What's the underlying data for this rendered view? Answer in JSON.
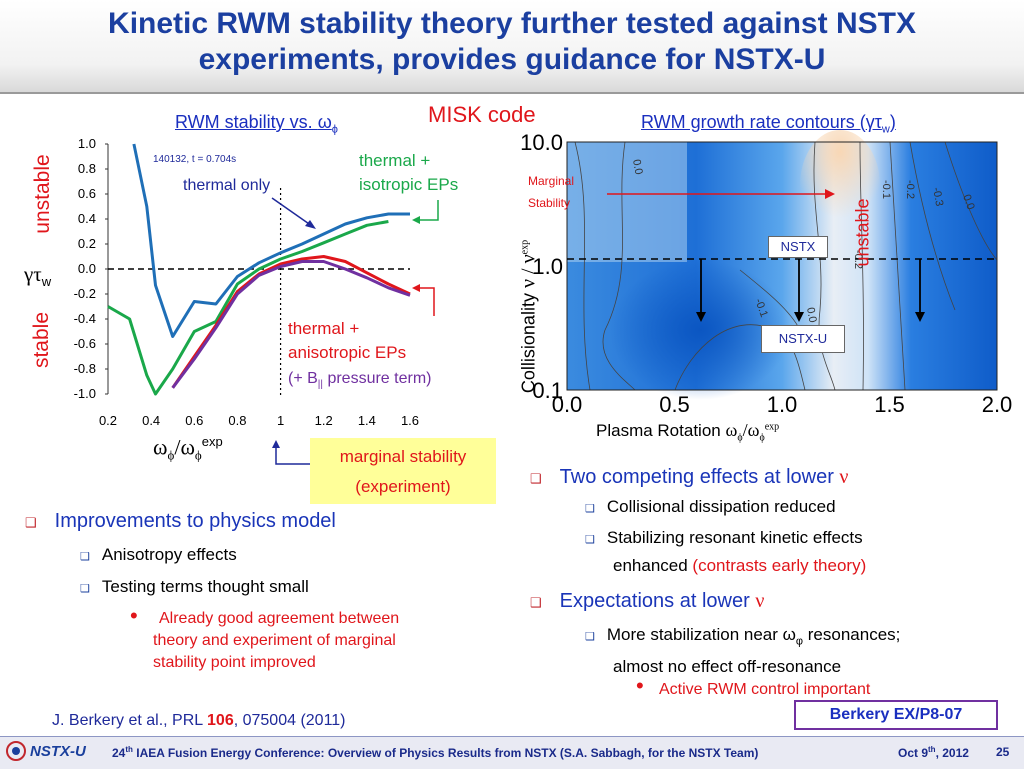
{
  "title": {
    "line1": "Kinetic RWM stability theory further tested against NSTX",
    "line2": "experiments, provides guidance for NSTX-U"
  },
  "misk_label": "MISK code",
  "left_plot": {
    "header_prefix": "RWM stability vs. ",
    "header_symbol": "ω",
    "header_sub": "ϕ",
    "shot_label": "140132, t = 0.704s",
    "ylabel_unstable": "unstable",
    "ylabel_stable": "stable",
    "ylabel_symbol": "γτ",
    "ylabel_sub": "w",
    "xlabel_num": "ω",
    "xlabel_num_sub": "ϕ",
    "xlabel_slash": "/ω",
    "xlabel_den_sub": "ϕ",
    "xlabel_sup": "exp",
    "annotation_thermal_only": "thermal only",
    "annotation_thermal_iso_1": "thermal +",
    "annotation_thermal_iso_2": "isotropic EPs",
    "annotation_thermal_aniso_1": "thermal +",
    "annotation_thermal_aniso_2": "anisotropic EPs",
    "annotation_thermal_aniso_3": "(+ B",
    "annotation_thermal_aniso_3_sub": "||",
    "annotation_thermal_aniso_4": " pressure term)",
    "marginal_box_1": "marginal stability",
    "marginal_box_2": "(experiment)"
  },
  "chart_data": [
    {
      "type": "line",
      "xlim": [
        0.2,
        1.6
      ],
      "ylim": [
        -1.0,
        1.0
      ],
      "x_ticks": [
        "0.2",
        "0.4",
        "0.6",
        "0.8",
        "1",
        "1.2",
        "1.4",
        "1.6"
      ],
      "y_ticks": [
        "1.0",
        "0.8",
        "0.6",
        "0.4",
        "0.2",
        "0.0",
        "-0.2",
        "-0.4",
        "-0.6",
        "-0.8",
        "-1.0"
      ],
      "marginal_x": 1.0,
      "series": [
        {
          "color": "#1f6fb7",
          "x": [
            0.32,
            0.38,
            0.42,
            0.5,
            0.6,
            0.7,
            0.8,
            0.9,
            1.0,
            1.1,
            1.2,
            1.3,
            1.4,
            1.5,
            1.6
          ],
          "y": [
            1.0,
            0.5,
            -0.13,
            -0.54,
            -0.26,
            -0.28,
            -0.06,
            0.05,
            0.13,
            0.2,
            0.28,
            0.36,
            0.41,
            0.44,
            0.44
          ]
        },
        {
          "color": "#1aa84a",
          "x": [
            0.2,
            0.3,
            0.38,
            0.42,
            0.5,
            0.6,
            0.7,
            0.8,
            0.9,
            1.0,
            1.1,
            1.2,
            1.3,
            1.4,
            1.5
          ],
          "y": [
            -0.3,
            -0.4,
            -0.85,
            -1.0,
            -0.8,
            -0.5,
            -0.42,
            -0.12,
            0.0,
            0.08,
            0.14,
            0.21,
            0.28,
            0.35,
            0.38
          ]
        },
        {
          "color": "#e0161b",
          "x": [
            0.5,
            0.6,
            0.7,
            0.8,
            0.9,
            1.0,
            1.1,
            1.2,
            1.3,
            1.4,
            1.5,
            1.6
          ],
          "y": [
            -0.95,
            -0.7,
            -0.45,
            -0.18,
            -0.04,
            0.04,
            0.08,
            0.1,
            0.06,
            -0.03,
            -0.12,
            -0.2
          ]
        },
        {
          "color": "#7030a0",
          "x": [
            0.5,
            0.6,
            0.7,
            0.8,
            0.9,
            1.0,
            1.1,
            1.2,
            1.3,
            1.4,
            1.5,
            1.6
          ],
          "y": [
            -0.95,
            -0.72,
            -0.47,
            -0.2,
            -0.05,
            0.02,
            0.06,
            0.06,
            0.0,
            -0.07,
            -0.15,
            -0.21
          ]
        }
      ]
    },
    {
      "type": "heatmap",
      "xlim": [
        0.0,
        2.0
      ],
      "ylim": [
        0.1,
        10.0
      ],
      "y_scale": "log",
      "x_ticks": [
        "0.0",
        "0.5",
        "1.0",
        "1.5",
        "2.0"
      ],
      "y_ticks": [
        "10.0",
        "1.0",
        "0.1"
      ],
      "contour_labels": [
        "0.0",
        "-0.1",
        "-0.2",
        "-0.3",
        "0.0",
        "-0.2",
        "-0.1",
        "0.0"
      ]
    }
  ],
  "right_plot": {
    "header_prefix": "RWM growth rate contours (",
    "header_symbol": "γτ",
    "header_sub": "w",
    "header_suffix": ")",
    "marginal_stability_1": "Marginal",
    "marginal_stability_2": "Stability",
    "unstable_label": "unstable",
    "nstx_label": "NSTX",
    "nstxu_label": "NSTX-U",
    "ylabel": "Collisionality",
    "ylabel_symbol": "ν / ν",
    "ylabel_sup": "exp",
    "xlabel": "Plasma Rotation",
    "xlabel_symbol": "ω",
    "xlabel_sub": "ϕ",
    "xlabel_slash": "/ω",
    "xlabel_sub2": "ϕ",
    "xlabel_sup": "exp"
  },
  "bullets_left": {
    "main": "Improvements to physics model",
    "sub1": "Anisotropy effects",
    "sub2": "Testing terms thought small",
    "subsub1_line1": "Already good agreement between",
    "subsub1_line2": "theory and experiment of marginal",
    "subsub1_line3": "stability point improved"
  },
  "bullets_right": {
    "main1_prefix": "Two competing effects at lower ",
    "main1_symbol": "ν",
    "sub1": "Collisional dissipation reduced",
    "sub2_line1": "Stabilizing resonant kinetic effects",
    "sub2_line2_prefix": "enhanced ",
    "sub2_line2_red": "(contrasts early theory)",
    "main2_prefix": "Expectations at lower ",
    "main2_symbol": "ν",
    "sub3_line1_prefix": "More stabilization near ω",
    "sub3_line1_sub": "φ",
    "sub3_line1_suffix": " resonances;",
    "sub3_line2": "almost no effect off-resonance",
    "subsub_red": "Active RWM control important"
  },
  "citation": {
    "prefix": "J. Berkery et al., PRL ",
    "volume": "106",
    "suffix": ", 075004 (2011)"
  },
  "paper_box": "Berkery EX/P8-07",
  "footer": {
    "logo_text": "NSTX-U",
    "conf_num": "24",
    "conf_sup": "th",
    "conf_text": " IAEA Fusion Energy Conference: Overview of Physics Results from NSTX (S.A. Sabbagh, for the NSTX Team)",
    "date_prefix": "Oct 9",
    "date_sup": "th",
    "date_suffix": ", 2012",
    "page": "25"
  },
  "colors": {
    "title": "#1b3fa0",
    "blue_series": "#1f6fb7",
    "green_series": "#1aa84a",
    "red_series": "#e0161b",
    "purple_series": "#7030a0",
    "marginal_box": "#ffff99"
  }
}
